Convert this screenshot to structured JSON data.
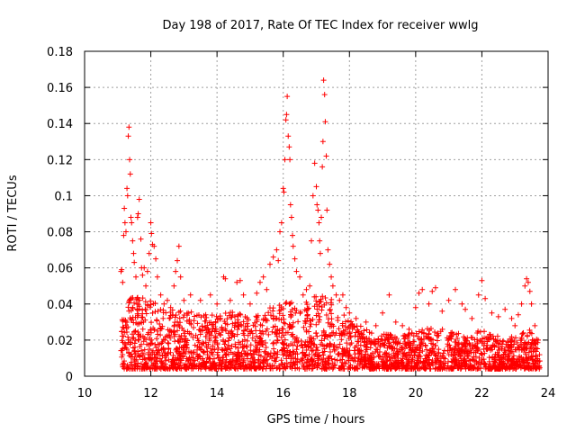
{
  "chart_data": {
    "type": "scatter",
    "title": "Day 198 of 2017, Rate Of TEC Index for receiver wwlg",
    "xlabel": "GPS time / hours",
    "ylabel": "ROTI / TECUs",
    "xlim": [
      10,
      24
    ],
    "ylim": [
      0,
      0.18
    ],
    "xticks": [
      10,
      12,
      14,
      16,
      18,
      20,
      22,
      24
    ],
    "yticks": [
      0,
      0.02,
      0.04,
      0.06,
      0.08,
      0.1,
      0.12,
      0.14,
      0.16,
      0.18
    ],
    "grid": true,
    "marker": "+",
    "series": [
      {
        "name": "ROTI",
        "color": "#ff0000",
        "points": [
          [
            11.1,
            0.058
          ],
          [
            11.12,
            0.059
          ],
          [
            11.15,
            0.052
          ],
          [
            11.18,
            0.078
          ],
          [
            11.2,
            0.093
          ],
          [
            11.22,
            0.085
          ],
          [
            11.25,
            0.08
          ],
          [
            11.28,
            0.104
          ],
          [
            11.3,
            0.1
          ],
          [
            11.32,
            0.133
          ],
          [
            11.34,
            0.138
          ],
          [
            11.36,
            0.12
          ],
          [
            11.38,
            0.112
          ],
          [
            11.4,
            0.088
          ],
          [
            11.42,
            0.085
          ],
          [
            11.45,
            0.075
          ],
          [
            11.48,
            0.068
          ],
          [
            11.5,
            0.063
          ],
          [
            11.55,
            0.055
          ],
          [
            11.6,
            0.088
          ],
          [
            11.62,
            0.09
          ],
          [
            11.65,
            0.098
          ],
          [
            11.7,
            0.076
          ],
          [
            11.72,
            0.06
          ],
          [
            11.75,
            0.056
          ],
          [
            11.8,
            0.06
          ],
          [
            11.85,
            0.05
          ],
          [
            11.9,
            0.058
          ],
          [
            11.95,
            0.068
          ],
          [
            12.0,
            0.085
          ],
          [
            12.02,
            0.079
          ],
          [
            12.05,
            0.073
          ],
          [
            12.1,
            0.072
          ],
          [
            12.15,
            0.065
          ],
          [
            12.2,
            0.055
          ],
          [
            12.3,
            0.045
          ],
          [
            12.4,
            0.04
          ],
          [
            12.5,
            0.042
          ],
          [
            12.6,
            0.038
          ],
          [
            12.7,
            0.05
          ],
          [
            12.75,
            0.058
          ],
          [
            12.8,
            0.064
          ],
          [
            12.85,
            0.072
          ],
          [
            12.9,
            0.055
          ],
          [
            13.0,
            0.042
          ],
          [
            13.2,
            0.045
          ],
          [
            13.5,
            0.042
          ],
          [
            13.8,
            0.045
          ],
          [
            14.0,
            0.04
          ],
          [
            14.2,
            0.055
          ],
          [
            14.25,
            0.054
          ],
          [
            14.4,
            0.042
          ],
          [
            14.6,
            0.052
          ],
          [
            14.7,
            0.053
          ],
          [
            14.8,
            0.045
          ],
          [
            15.0,
            0.04
          ],
          [
            15.2,
            0.046
          ],
          [
            15.3,
            0.052
          ],
          [
            15.4,
            0.055
          ],
          [
            15.5,
            0.048
          ],
          [
            15.6,
            0.062
          ],
          [
            15.7,
            0.066
          ],
          [
            15.8,
            0.07
          ],
          [
            15.85,
            0.064
          ],
          [
            15.9,
            0.08
          ],
          [
            15.95,
            0.085
          ],
          [
            16.0,
            0.104
          ],
          [
            16.02,
            0.102
          ],
          [
            16.05,
            0.12
          ],
          [
            16.08,
            0.142
          ],
          [
            16.1,
            0.145
          ],
          [
            16.12,
            0.155
          ],
          [
            16.15,
            0.133
          ],
          [
            16.18,
            0.127
          ],
          [
            16.2,
            0.12
          ],
          [
            16.22,
            0.095
          ],
          [
            16.25,
            0.088
          ],
          [
            16.28,
            0.078
          ],
          [
            16.3,
            0.072
          ],
          [
            16.35,
            0.065
          ],
          [
            16.4,
            0.058
          ],
          [
            16.5,
            0.055
          ],
          [
            16.6,
            0.045
          ],
          [
            16.7,
            0.048
          ],
          [
            16.8,
            0.05
          ],
          [
            16.85,
            0.075
          ],
          [
            16.9,
            0.1
          ],
          [
            16.95,
            0.118
          ],
          [
            17.0,
            0.105
          ],
          [
            17.02,
            0.095
          ],
          [
            17.05,
            0.092
          ],
          [
            17.08,
            0.085
          ],
          [
            17.1,
            0.075
          ],
          [
            17.12,
            0.068
          ],
          [
            17.15,
            0.088
          ],
          [
            17.18,
            0.116
          ],
          [
            17.2,
            0.13
          ],
          [
            17.22,
            0.164
          ],
          [
            17.25,
            0.156
          ],
          [
            17.27,
            0.141
          ],
          [
            17.3,
            0.122
          ],
          [
            17.32,
            0.092
          ],
          [
            17.35,
            0.07
          ],
          [
            17.4,
            0.062
          ],
          [
            17.45,
            0.055
          ],
          [
            17.5,
            0.05
          ],
          [
            17.6,
            0.045
          ],
          [
            17.7,
            0.042
          ],
          [
            17.8,
            0.045
          ],
          [
            17.9,
            0.038
          ],
          [
            18.0,
            0.035
          ],
          [
            18.2,
            0.032
          ],
          [
            18.5,
            0.03
          ],
          [
            18.8,
            0.028
          ],
          [
            19.0,
            0.035
          ],
          [
            19.2,
            0.045
          ],
          [
            19.4,
            0.03
          ],
          [
            19.6,
            0.028
          ],
          [
            19.8,
            0.026
          ],
          [
            20.0,
            0.038
          ],
          [
            20.1,
            0.046
          ],
          [
            20.2,
            0.048
          ],
          [
            20.4,
            0.04
          ],
          [
            20.5,
            0.047
          ],
          [
            20.6,
            0.049
          ],
          [
            20.8,
            0.036
          ],
          [
            21.0,
            0.042
          ],
          [
            21.2,
            0.048
          ],
          [
            21.4,
            0.04
          ],
          [
            21.5,
            0.037
          ],
          [
            21.7,
            0.032
          ],
          [
            21.9,
            0.045
          ],
          [
            22.0,
            0.053
          ],
          [
            22.1,
            0.043
          ],
          [
            22.3,
            0.035
          ],
          [
            22.5,
            0.033
          ],
          [
            22.7,
            0.037
          ],
          [
            22.9,
            0.032
          ],
          [
            23.0,
            0.028
          ],
          [
            23.1,
            0.034
          ],
          [
            23.2,
            0.04
          ],
          [
            23.3,
            0.05
          ],
          [
            23.35,
            0.054
          ],
          [
            23.4,
            0.052
          ],
          [
            23.45,
            0.047
          ],
          [
            23.5,
            0.04
          ],
          [
            23.6,
            0.028
          ],
          [
            23.7,
            0.02
          ]
        ],
        "envelope": [
          [
            11.1,
            0.038
          ],
          [
            11.5,
            0.045
          ],
          [
            12.0,
            0.042
          ],
          [
            12.5,
            0.038
          ],
          [
            13.0,
            0.036
          ],
          [
            13.5,
            0.035
          ],
          [
            14.0,
            0.034
          ],
          [
            14.5,
            0.036
          ],
          [
            15.0,
            0.033
          ],
          [
            15.5,
            0.038
          ],
          [
            16.0,
            0.042
          ],
          [
            16.5,
            0.04
          ],
          [
            17.0,
            0.045
          ],
          [
            17.5,
            0.043
          ],
          [
            18.0,
            0.032
          ],
          [
            18.5,
            0.026
          ],
          [
            19.0,
            0.024
          ],
          [
            19.5,
            0.022
          ],
          [
            20.0,
            0.025
          ],
          [
            20.5,
            0.027
          ],
          [
            21.0,
            0.026
          ],
          [
            21.5,
            0.022
          ],
          [
            22.0,
            0.026
          ],
          [
            22.5,
            0.022
          ],
          [
            23.0,
            0.022
          ],
          [
            23.5,
            0.026
          ],
          [
            23.75,
            0.02
          ]
        ]
      }
    ]
  }
}
